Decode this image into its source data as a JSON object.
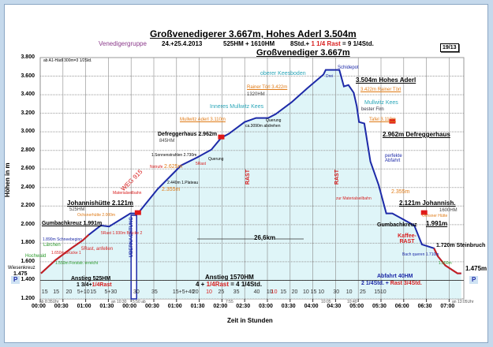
{
  "header": {
    "title": "Großvenedigerer 3.667m, Hohes Aderl 3.504m",
    "group": "Venedigergruppe",
    "date": "24.+25.4.2013",
    "hm": "525HM + 1610HM",
    "time_pre": "8Std.+ ",
    "time_rast": "1 1/4 Rast",
    "time_post": " = 9 1/4Std.",
    "badge": "19/13"
  },
  "chart_data": {
    "type": "area",
    "title": "Großvenediger 3.667m",
    "xlabel": "Zeit in Stunden",
    "ylabel": "Höhen in m",
    "ylim": [
      1200,
      3800
    ],
    "xlim": [
      0,
      560
    ],
    "yticks": [
      "1.200",
      "1.400",
      "1.600",
      "1.800",
      "2.000",
      "2.200",
      "2.400",
      "2.600",
      "2.800",
      "3.000",
      "3.200",
      "3.400",
      "3.600",
      "3.800"
    ],
    "xticks": [
      "00:00",
      "00:30",
      "01:00",
      "01:30",
      "00:00",
      "00:30",
      "01:00",
      "01:30",
      "02:00",
      "02:30",
      "03:00",
      "03:30",
      "04:00",
      "04:30",
      "05:00",
      "05:30",
      "06:00",
      "06:30",
      "07:00"
    ],
    "series": [
      {
        "name": "Höhenprofil",
        "color": "#1d2aa8",
        "fill": "#dff5f8",
        "x": [
          1,
          20,
          41,
          56,
          64,
          80,
          91,
          119,
          129,
          155,
          186,
          207,
          226,
          239,
          249,
          270,
          285,
          301,
          311,
          332,
          353,
          374,
          377,
          395,
          401,
          407,
          414,
          418,
          421,
          428,
          436,
          447,
          457,
          465,
          494,
          504,
          520,
          525,
          535,
          551,
          556
        ],
        "y": [
          1475,
          1617,
          1745,
          1830,
          1890,
          1991,
          1980,
          2121,
          2121,
          2383,
          2638,
          2723,
          2808,
          2936,
          2979,
          3106,
          3149,
          3149,
          3191,
          3319,
          3472,
          3617,
          3667,
          3667,
          3489,
          3504,
          3421,
          3276,
          3106,
          3090,
          2681,
          2425,
          2121,
          2121,
          1991,
          1787,
          1745,
          1660,
          1560,
          1475,
          1475
        ]
      }
    ]
  },
  "labels": {
    "start_note": "ab A1-Hädl 300m=3 1/2Std.",
    "wiesenkreuz": "Wiesenkreuz",
    "start_elev": "1.475",
    "end_elev": "1.475m",
    "parking": "P",
    "hochwald": "Hochwald",
    "laerchen": "Lärchen",
    "forststr": "1.550m Forststr. erreicht",
    "bruecke1": "1.650m Brücke 1",
    "schneebeginn": "1.890m Schneebeginn",
    "rast5": "5Rast, anfellen",
    "bruecke2": "5Rast 1.930m Brücke 2",
    "gumbach": "Gumbachkreuz 1.991m",
    "johannis": "Johannishütte 2.121m",
    "johannis_hm": "525HM",
    "ochsner": "Ochsnerhütte 2.000m",
    "weg": "WEG 915",
    "material": "Materialseilbahn",
    "m2355": "2.355m",
    "plateau": "2.440m 1.Plateau",
    "notrufe": "Notrufe",
    "m2625": "2.625m",
    "sonnen": "1.Sonnenstrahlen 2.730m",
    "rast5b": "5Rast",
    "querung": "Querung",
    "defregger": "Defreggerhaus 2.962m",
    "defregger_hm": "845HM",
    "mullwitz_aderl": "Mullwitz Aderl 3.110m",
    "abdrehen": "ca.3090m abdrehen",
    "querung2": "Querung",
    "inneres": "Inneres Mullwitz Kees",
    "rainer": "Rainer Törl 3.422m",
    "rainer_hm": "1320HM",
    "kees": "oberer Keesboden",
    "grosv": "Großvenediger 3.667m",
    "drei": "Drei",
    "schidepot": "Schidepot",
    "aderl": "3.504m Hohes Aderl",
    "rainer2": "3.422m Rainer Törl",
    "mullwitz_kees": "Mullwitz Kees",
    "firn": "bester Firn",
    "tafel": "Tafel 3.110m",
    "defregger2": "2.962m Defreggerhaus",
    "abfahrt": "perfekte Abfahrt",
    "m2355b": "2.355m",
    "material2": "zur Materialseilbahn",
    "johannish": "2.121m Johannish.",
    "hm1600": "1600HM",
    "ochsner2": "Ochsner Hütte",
    "gumbach2": "Gumbachkreuz",
    "m1991": "1.991m",
    "kaffee": "Kaffee-RAST",
    "steinbruch": "1.720m Steinbruch",
    "bach": "Bach queren 1.710m",
    "m1550": "1.550m",
    "rast1": "RAST",
    "rast2": "RAST",
    "uebernachtung": "ÜBERNACHTUNG",
    "dist": "26,6km",
    "anstieg1": "Anstieg 525HM",
    "anstieg1b": "1 3/4+",
    "anstieg1r": "1/4Rast",
    "anstieg2": "Anstieg 1570HM",
    "anstieg2b": "4 + ",
    "anstieg2r": "1/4Rast",
    "anstieg2c": " = 4 1/4Std.",
    "abfahrt_hm": "Abfahrt 40HM",
    "abfahrt_b": "2 1/4Std. + ",
    "abfahrt_r": "Rast 3/4Std.",
    "t_start": "ab 8:35Uhr",
    "t_1030": "an 10:30",
    "t_550": "5:50 ab",
    "t_755": "7:55",
    "t_1005": "10:05",
    "t_1040": "10:40",
    "t_end": "an 13:05Uhr"
  },
  "durations": [
    "15",
    "15",
    "20",
    "5+10",
    "15",
    "5+30",
    "30",
    "35",
    "15+5+40",
    "20",
    "10",
    "25",
    "35",
    "40",
    "10",
    "10",
    "15",
    "20",
    "10",
    "15",
    "10",
    "30",
    "10",
    "25",
    "15",
    "10"
  ]
}
